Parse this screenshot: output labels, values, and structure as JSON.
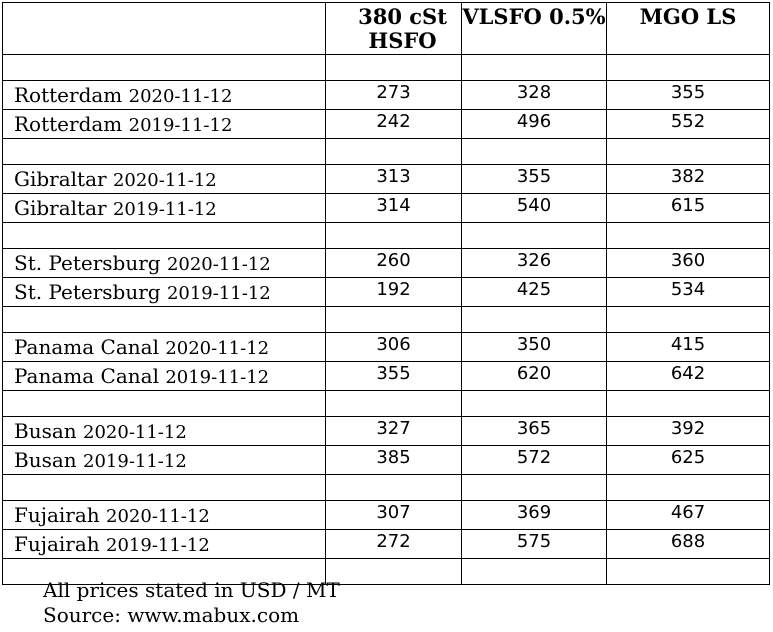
{
  "table": {
    "headers": {
      "port": "",
      "hsfo": "380 cSt HSFO",
      "vlsfo": "VLSFO 0.5%",
      "mgo": "MGO LS"
    },
    "groups": [
      {
        "rows": [
          {
            "port": "Rotterdam",
            "date": "2020-11-12",
            "hsfo": "273",
            "vlsfo": "328",
            "mgo": "355"
          },
          {
            "port": "Rotterdam",
            "date": "2019-11-12",
            "hsfo": "242",
            "vlsfo": "496",
            "mgo": "552"
          }
        ]
      },
      {
        "rows": [
          {
            "port": "Gibraltar",
            "date": "2020-11-12",
            "hsfo": "313",
            "vlsfo": "355",
            "mgo": "382"
          },
          {
            "port": "Gibraltar",
            "date": "2019-11-12",
            "hsfo": "314",
            "vlsfo": "540",
            "mgo": "615"
          }
        ]
      },
      {
        "rows": [
          {
            "port": "St. Petersburg",
            "date": "2020-11-12",
            "hsfo": "260",
            "vlsfo": "326",
            "mgo": "360"
          },
          {
            "port": "St. Petersburg",
            "date": "2019-11-12",
            "hsfo": "192",
            "vlsfo": "425",
            "mgo": "534"
          }
        ]
      },
      {
        "rows": [
          {
            "port": "Panama Canal",
            "date": "2020-11-12",
            "hsfo": "306",
            "vlsfo": "350",
            "mgo": "415"
          },
          {
            "port": "Panama Canal",
            "date": "2019-11-12",
            "hsfo": "355",
            "vlsfo": "620",
            "mgo": "642"
          }
        ]
      },
      {
        "rows": [
          {
            "port": "Busan",
            "date": "2020-11-12",
            "hsfo": "327",
            "vlsfo": "365",
            "mgo": "392"
          },
          {
            "port": "Busan",
            "date": "2019-11-12",
            "hsfo": "385",
            "vlsfo": "572",
            "mgo": "625"
          }
        ]
      },
      {
        "rows": [
          {
            "port": "Fujairah",
            "date": "2020-11-12",
            "hsfo": "307",
            "vlsfo": "369",
            "mgo": "467"
          },
          {
            "port": "Fujairah",
            "date": "2019-11-12",
            "hsfo": "272",
            "vlsfo": "575",
            "mgo": "688"
          }
        ]
      }
    ]
  },
  "footnotes": {
    "units": "All prices stated in USD / MT",
    "source": "Source: www.mabux.com"
  }
}
